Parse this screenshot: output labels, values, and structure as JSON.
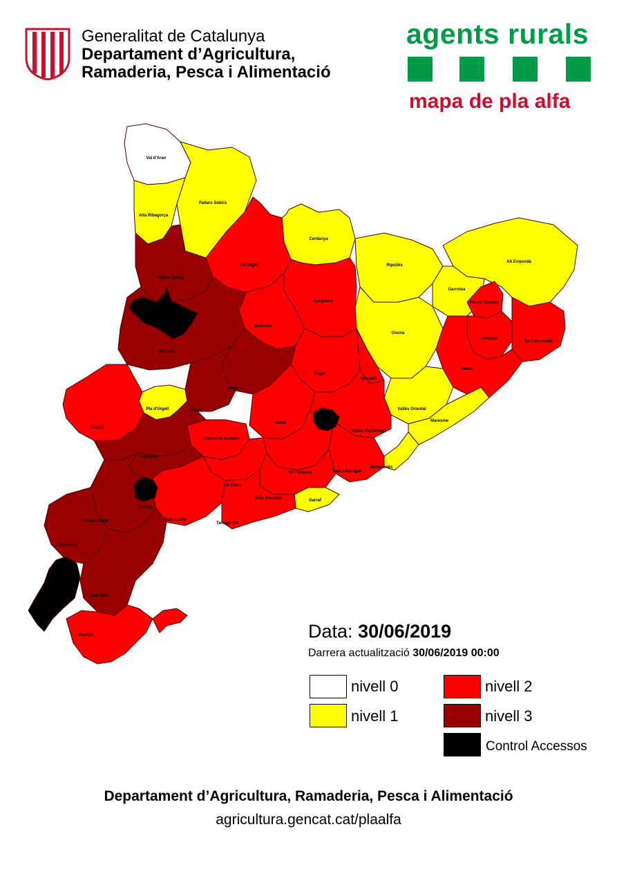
{
  "header": {
    "generalitat": "Generalitat de Catalunya",
    "department_line1": "Departament d’Agricultura,",
    "department_line2": "Ramaderia, Pesca i Alimentació",
    "logo_icon": "senyera-shield-icon"
  },
  "agents_rurals": {
    "title": "agents rurals",
    "subtitle": "mapa de pla alfa",
    "green": "#009b48",
    "red": "#c8102e"
  },
  "colors": {
    "nivell_0": "#ffffff",
    "nivell_1": "#ffff00",
    "nivell_2": "#ff0000",
    "nivell_3": "#990000",
    "control_accessos": "#000000"
  },
  "regions": [
    {
      "name": "Val d'Aran",
      "level": "0"
    },
    {
      "name": "Pallars Sobirà",
      "level": "1"
    },
    {
      "name": "Alta Ribagorça",
      "level": "1"
    },
    {
      "name": "Cerdanya",
      "level": "1"
    },
    {
      "name": "Ripollès",
      "level": "1"
    },
    {
      "name": "Alt Empordà",
      "level": "1"
    },
    {
      "name": "Garrotxa",
      "level": "1"
    },
    {
      "name": "Osona",
      "level": "1"
    },
    {
      "name": "Vallès Oriental",
      "level": "1"
    },
    {
      "name": "Maresme",
      "level": "1"
    },
    {
      "name": "Barcelonès",
      "level": "1"
    },
    {
      "name": "Garraf",
      "level": "1"
    },
    {
      "name": "Pla d'Urgell",
      "level": "1"
    },
    {
      "name": "Pallars Jussà",
      "level": "3"
    },
    {
      "name": "Alt Urgell",
      "level": "2"
    },
    {
      "name": "Berguedà",
      "level": "2"
    },
    {
      "name": "Solsonès",
      "level": "2"
    },
    {
      "name": "Pla de l'Estany",
      "level": "2"
    },
    {
      "name": "Gironès",
      "level": "2"
    },
    {
      "name": "Baix Empordà",
      "level": "2"
    },
    {
      "name": "Selva",
      "level": "2"
    },
    {
      "name": "Noguera",
      "level": "3"
    },
    {
      "name": "Segarra",
      "level": "3"
    },
    {
      "name": "Urgell",
      "level": "3"
    },
    {
      "name": "Bages",
      "level": "2"
    },
    {
      "name": "Moianès",
      "level": "2"
    },
    {
      "name": "Segrià",
      "level": "2"
    },
    {
      "name": "Anoia",
      "level": "2"
    },
    {
      "name": "Vallès Occidental",
      "level": "2"
    },
    {
      "name": "Garrigues",
      "level": "3"
    },
    {
      "name": "Conca de Barberà",
      "level": "2"
    },
    {
      "name": "Alt Penedès",
      "level": "2"
    },
    {
      "name": "Baix Llobregat",
      "level": "2"
    },
    {
      "name": "Alt Camp",
      "level": "2"
    },
    {
      "name": "Baix Penedès",
      "level": "2"
    },
    {
      "name": "Priorat",
      "level": "3"
    },
    {
      "name": "Baix Camp",
      "level": "2"
    },
    {
      "name": "Tarragonès",
      "level": "2"
    },
    {
      "name": "Ribera d'Ebre",
      "level": "3"
    },
    {
      "name": "Terra Alta",
      "level": "3"
    },
    {
      "name": "Baix Ebre",
      "level": "3"
    },
    {
      "name": "Montsià",
      "level": "2"
    }
  ],
  "info": {
    "date_label": "Data:",
    "date_value": "30/06/2019",
    "update_label": "Darrera actualització",
    "update_value": "30/06/2019  00:00"
  },
  "legend": {
    "nivell_0": "nivell 0",
    "nivell_1": "nivell 1",
    "nivell_2": "nivell 2",
    "nivell_3": "nivell 3",
    "control": "Control Accessos"
  },
  "footer": {
    "department": "Departament d’Agricultura, Ramaderia, Pesca i Alimentació",
    "url": "agricultura.gencat.cat/plaalfa"
  }
}
